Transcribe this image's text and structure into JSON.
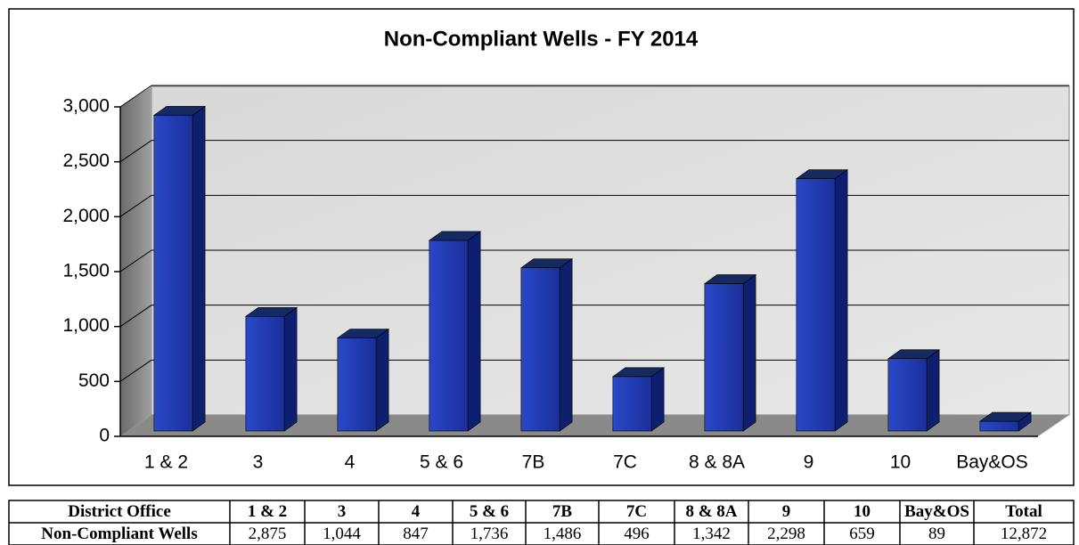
{
  "chart_data": {
    "type": "bar",
    "title": "Non-Compliant Wells - FY 2014",
    "categories": [
      "1 & 2",
      "3",
      "4",
      "5 & 6",
      "7B",
      "7C",
      "8 & 8A",
      "9",
      "10",
      "Bay&OS"
    ],
    "values": [
      2875,
      1044,
      847,
      1736,
      1486,
      496,
      1342,
      2298,
      659,
      89
    ],
    "value_labels": [
      "2,875",
      "1,044",
      "847",
      "1,736",
      "1,486",
      "496",
      "1,342",
      "2,298",
      "659",
      "89"
    ],
    "color": "#1e37b4",
    "ylim": [
      0,
      3000
    ],
    "yticks": [
      0,
      500,
      {
        "value": 1000,
        "label": "1,000"
      },
      {
        "value": 1500,
        "label": "1,500"
      },
      {
        "value": 2000,
        "label": "2,000"
      },
      {
        "value": 2500,
        "label": "2,500"
      },
      {
        "value": 3000,
        "label": "3,000"
      }
    ],
    "grid": true
  },
  "table": {
    "header": "District Office",
    "row_label": "Non-Compliant Wells",
    "total_label": "Total",
    "total": "12,872"
  }
}
